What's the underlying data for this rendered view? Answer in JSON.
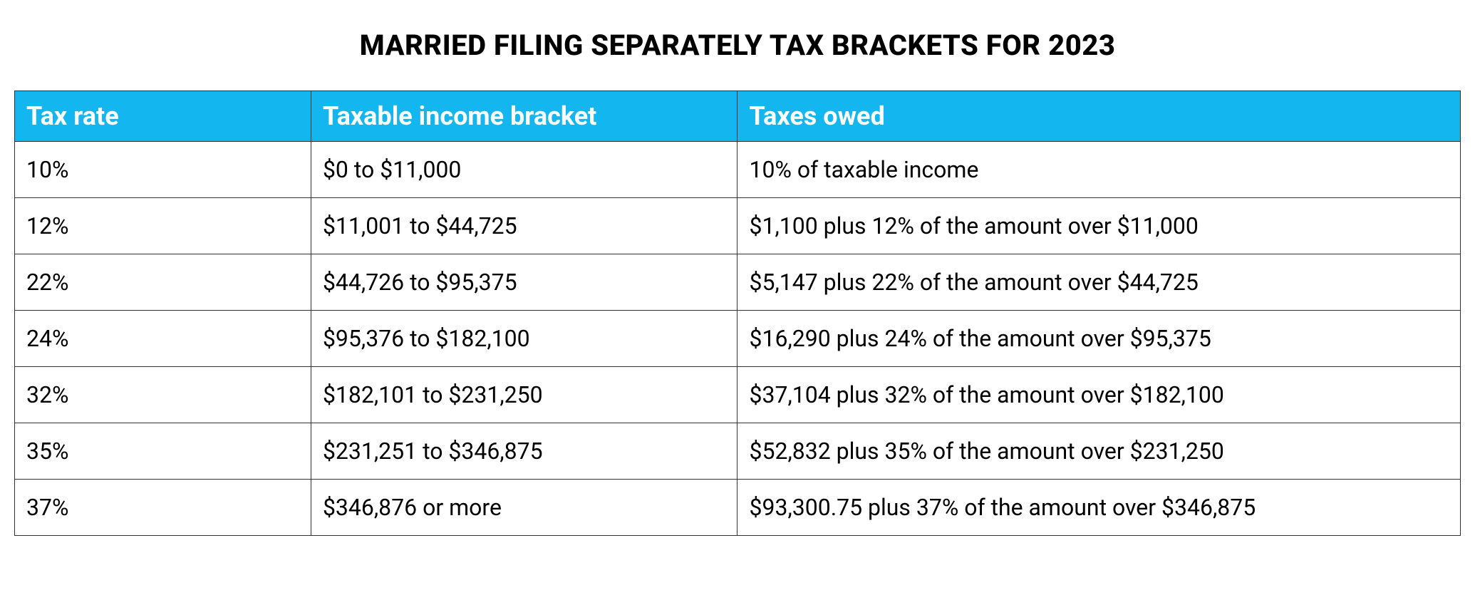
{
  "title": "MARRIED FILING SEPARATELY TAX BRACKETS FOR 2023",
  "table": {
    "columns": [
      "Tax rate",
      "Taxable income bracket",
      "Taxes owed"
    ],
    "header_bg": "#14b6ef",
    "header_text_color": "#ffffff",
    "border_color": "#333333",
    "cell_bg": "#ffffff",
    "cell_text_color": "#000000",
    "header_fontsize": 36,
    "cell_fontsize": 32,
    "column_widths_pct": [
      20.5,
      29.5,
      50
    ],
    "rows": [
      [
        "10%",
        "$0 to $11,000",
        "10% of taxable income"
      ],
      [
        "12%",
        "$11,001 to $44,725",
        "$1,100 plus 12% of the amount over $11,000"
      ],
      [
        "22%",
        "$44,726 to $95,375",
        "$5,147 plus 22% of the amount over $44,725"
      ],
      [
        "24%",
        "$95,376 to $182,100",
        "$16,290 plus 24% of the amount over $95,375"
      ],
      [
        "32%",
        "$182,101 to $231,250",
        "$37,104 plus 32% of the amount over $182,100"
      ],
      [
        "35%",
        "$231,251 to $346,875",
        "$52,832 plus 35% of the amount over $231,250"
      ],
      [
        "37%",
        "$346,876 or more",
        "$93,300.75 plus 37% of the amount over $346,875"
      ]
    ]
  }
}
